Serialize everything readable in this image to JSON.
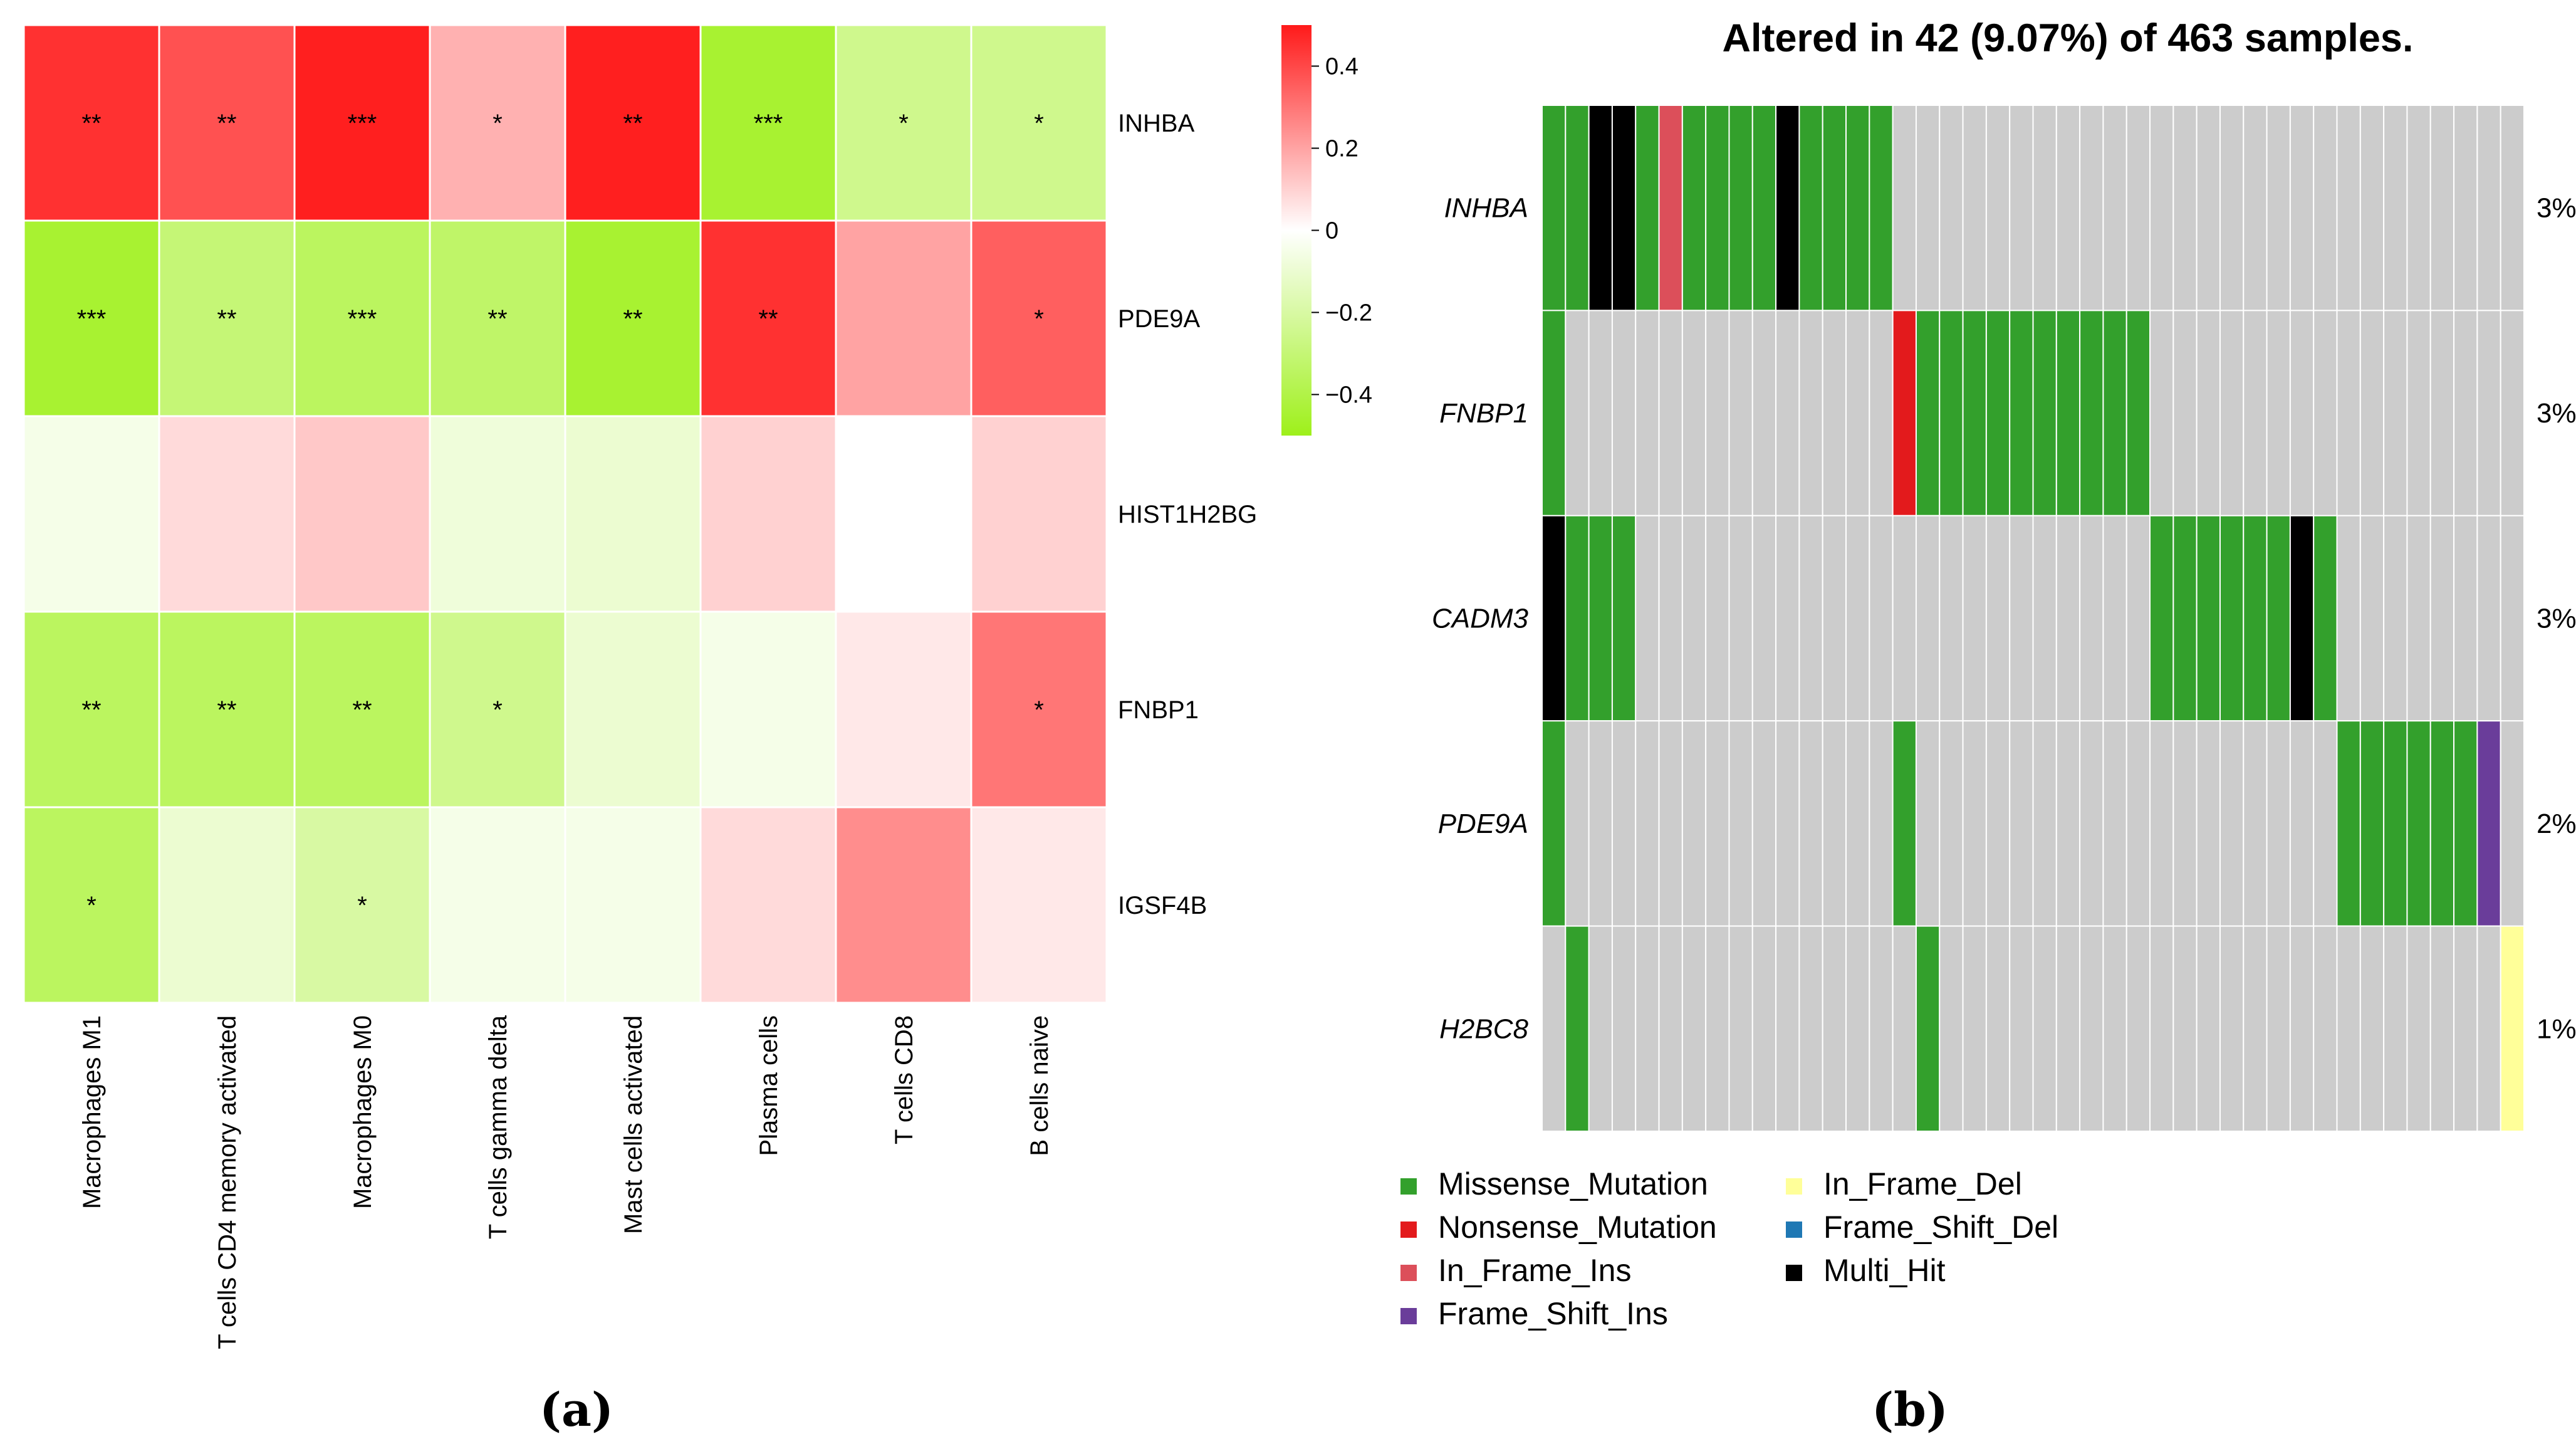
{
  "panels": {
    "a_label": "(a)",
    "b_label": "(b)"
  },
  "chart_data": [
    {
      "type": "heatmap",
      "title": "",
      "rows": [
        "INHBA",
        "PDE9A",
        "HIST1H2BG",
        "FNBP1",
        "IGSF4B"
      ],
      "columns": [
        "Macrophages M1",
        "T cells CD4 memory activated",
        "Macrophages M0",
        "T cells gamma delta",
        "Mast cells activated",
        "Plasma cells",
        "T cells CD8",
        "B cells naive"
      ],
      "values": [
        [
          0.45,
          0.38,
          0.49,
          0.17,
          0.49,
          -0.45,
          -0.25,
          -0.25
        ],
        [
          -0.45,
          -0.3,
          -0.35,
          -0.33,
          -0.45,
          0.45,
          0.2,
          0.35
        ],
        [
          -0.05,
          0.08,
          0.12,
          -0.08,
          -0.1,
          0.1,
          0.0,
          0.1
        ],
        [
          -0.35,
          -0.35,
          -0.35,
          -0.25,
          -0.1,
          -0.05,
          0.05,
          0.3
        ],
        [
          -0.35,
          -0.1,
          -0.2,
          -0.05,
          -0.05,
          0.08,
          0.25,
          0.05
        ]
      ],
      "significance": [
        [
          "**",
          "**",
          "***",
          "*",
          "**",
          "***",
          "*",
          "*"
        ],
        [
          "***",
          "**",
          "***",
          "**",
          "**",
          "**",
          "",
          "*"
        ],
        [
          "",
          "",
          "",
          "",
          "",
          "",
          "",
          ""
        ],
        [
          "**",
          "**",
          "**",
          "*",
          "",
          "",
          "",
          "*"
        ],
        [
          "*",
          "",
          "*",
          "",
          "",
          "",
          "",
          ""
        ]
      ],
      "colorbar": {
        "min": -0.5,
        "max": 0.5,
        "ticks": [
          0.4,
          0.2,
          0,
          -0.2,
          -0.4
        ],
        "tick_labels": [
          "0.4",
          "0.2",
          "0",
          "−0.2",
          "−0.4"
        ],
        "low_color": "#9ef01a",
        "mid_color": "#ffffff",
        "high_color": "#ff1a1a"
      }
    },
    {
      "type": "heatmap",
      "subtype": "oncoplot",
      "title": "Altered in 42 (9.07%) of 463 samples.",
      "genes": [
        "INHBA",
        "FNBP1",
        "CADM3",
        "PDE9A",
        "H2BC8"
      ],
      "percentages": [
        "3%",
        "3%",
        "3%",
        "2%",
        "1%"
      ],
      "n_columns": 42,
      "background_color": "#cccccc",
      "cells": {
        "INHBA": {
          "0": "Missense_Mutation",
          "1": "Missense_Mutation",
          "2": "Multi_Hit",
          "3": "Multi_Hit",
          "4": "Missense_Mutation",
          "5": "In_Frame_Ins",
          "6": "Missense_Mutation",
          "7": "Missense_Mutation",
          "8": "Missense_Mutation",
          "9": "Missense_Mutation",
          "10": "Multi_Hit",
          "11": "Missense_Mutation",
          "12": "Missense_Mutation",
          "13": "Missense_Mutation",
          "14": "Missense_Mutation"
        },
        "FNBP1": {
          "0": "Missense_Mutation",
          "15": "Nonsense_Mutation",
          "16": "Missense_Mutation",
          "17": "Missense_Mutation",
          "18": "Missense_Mutation",
          "19": "Missense_Mutation",
          "20": "Missense_Mutation",
          "21": "Missense_Mutation",
          "22": "Missense_Mutation",
          "23": "Missense_Mutation",
          "24": "Missense_Mutation",
          "25": "Missense_Mutation"
        },
        "CADM3": {
          "0": "Multi_Hit",
          "1": "Missense_Mutation",
          "2": "Missense_Mutation",
          "3": "Missense_Mutation",
          "26": "Missense_Mutation",
          "27": "Missense_Mutation",
          "28": "Missense_Mutation",
          "29": "Missense_Mutation",
          "30": "Missense_Mutation",
          "31": "Missense_Mutation",
          "32": "Multi_Hit",
          "33": "Missense_Mutation"
        },
        "PDE9A": {
          "0": "Missense_Mutation",
          "15": "Missense_Mutation",
          "34": "Missense_Mutation",
          "35": "Missense_Mutation",
          "36": "Missense_Mutation",
          "37": "Missense_Mutation",
          "38": "Missense_Mutation",
          "39": "Missense_Mutation",
          "40": "Frame_Shift_Ins"
        },
        "H2BC8": {
          "1": "Missense_Mutation",
          "16": "Missense_Mutation",
          "41": "In_Frame_Del"
        }
      },
      "legend": [
        {
          "name": "Missense_Mutation",
          "color": "#33a02c"
        },
        {
          "name": "Nonsense_Mutation",
          "color": "#e31a1c"
        },
        {
          "name": "In_Frame_Ins",
          "color": "#dc4f5a"
        },
        {
          "name": "Frame_Shift_Ins",
          "color": "#6a3d9a"
        },
        {
          "name": "In_Frame_Del",
          "color": "#ffff99"
        },
        {
          "name": "Frame_Shift_Del",
          "color": "#1f78b4"
        },
        {
          "name": "Multi_Hit",
          "color": "#000000"
        }
      ]
    }
  ]
}
